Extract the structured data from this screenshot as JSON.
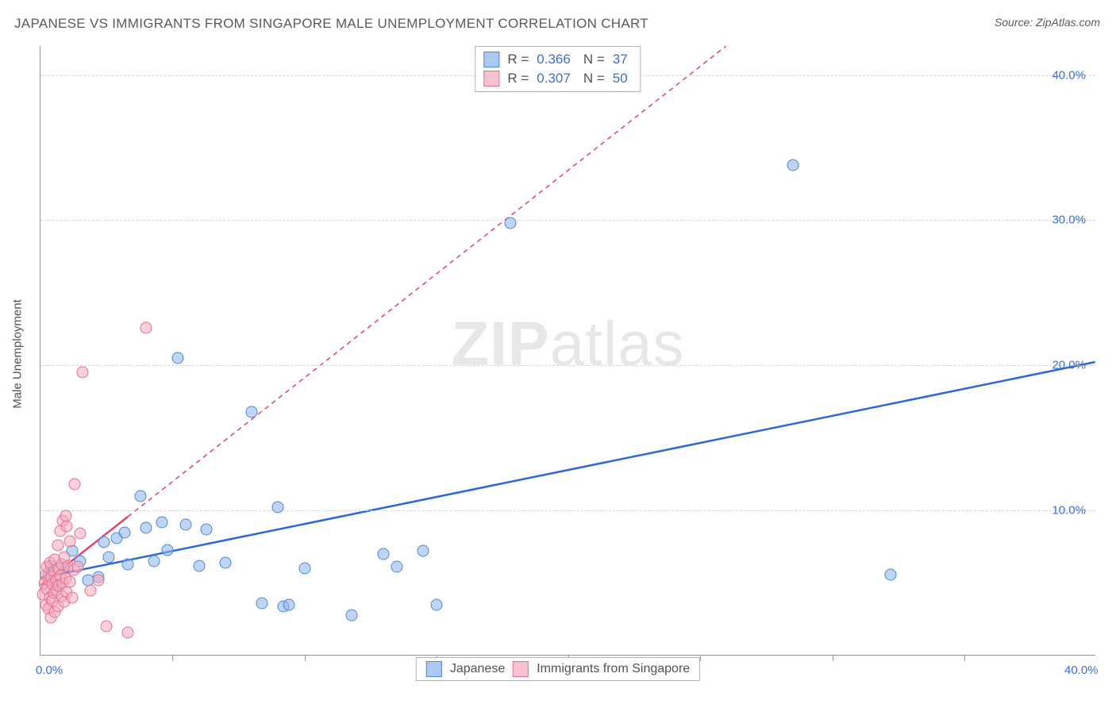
{
  "title": "JAPANESE VS IMMIGRANTS FROM SINGAPORE MALE UNEMPLOYMENT CORRELATION CHART",
  "source": "Source: ZipAtlas.com",
  "y_axis_label": "Male Unemployment",
  "watermark_bold": "ZIP",
  "watermark_rest": "atlas",
  "chart": {
    "type": "scatter",
    "xlim": [
      0,
      40
    ],
    "ylim": [
      0,
      42
    ],
    "x_ticks": [
      {
        "v": 0,
        "label": "0.0%"
      },
      {
        "v": 40,
        "label": "40.0%"
      }
    ],
    "y_ticks": [
      {
        "v": 10,
        "label": "10.0%"
      },
      {
        "v": 20,
        "label": "20.0%"
      },
      {
        "v": 30,
        "label": "30.0%"
      },
      {
        "v": 40,
        "label": "40.0%"
      }
    ],
    "v_tick_marks": [
      5,
      10,
      15,
      20,
      25,
      30,
      35
    ],
    "grid_color": "#d5d5d5",
    "background_color": "#ffffff",
    "series": [
      {
        "name": "Japanese",
        "color_fill": "rgba(136,178,235,0.55)",
        "color_stroke": "#4f87d0",
        "marker": "circle",
        "marker_size": 15,
        "R": "0.366",
        "N": "37",
        "trend": {
          "x1": 0,
          "y1": 5.3,
          "x2": 40,
          "y2": 20.2,
          "x_solid_end": 40,
          "stroke": "#2b68d8",
          "width": 2.5,
          "dash": null
        },
        "points": [
          [
            0.3,
            5.5
          ],
          [
            0.4,
            6.2
          ],
          [
            0.6,
            4.8
          ],
          [
            0.9,
            6.0
          ],
          [
            1.2,
            7.2
          ],
          [
            1.5,
            6.5
          ],
          [
            1.8,
            5.2
          ],
          [
            2.2,
            5.4
          ],
          [
            2.4,
            7.8
          ],
          [
            2.6,
            6.8
          ],
          [
            2.9,
            8.1
          ],
          [
            3.2,
            8.5
          ],
          [
            3.3,
            6.3
          ],
          [
            3.8,
            11.0
          ],
          [
            4.0,
            8.8
          ],
          [
            4.3,
            6.5
          ],
          [
            4.6,
            9.2
          ],
          [
            4.8,
            7.3
          ],
          [
            5.2,
            20.5
          ],
          [
            5.5,
            9.0
          ],
          [
            6.0,
            6.2
          ],
          [
            6.3,
            8.7
          ],
          [
            7.0,
            6.4
          ],
          [
            8.0,
            16.8
          ],
          [
            8.4,
            3.6
          ],
          [
            9.0,
            10.2
          ],
          [
            9.2,
            3.4
          ],
          [
            9.4,
            3.5
          ],
          [
            10.0,
            6.0
          ],
          [
            11.8,
            2.8
          ],
          [
            13.0,
            7.0
          ],
          [
            13.5,
            6.1
          ],
          [
            14.5,
            7.2
          ],
          [
            15.0,
            3.5
          ],
          [
            17.8,
            29.8
          ],
          [
            28.5,
            33.8
          ],
          [
            32.2,
            5.6
          ]
        ]
      },
      {
        "name": "Immigrants from Singapore",
        "color_fill": "rgba(245,170,190,0.55)",
        "color_stroke": "#e56f8f",
        "marker": "circle",
        "marker_size": 15,
        "R": "0.307",
        "N": "50",
        "trend": {
          "x1": 0,
          "y1": 4.8,
          "x2": 26,
          "y2": 42,
          "x_solid_end": 3.3,
          "stroke": "#e24070",
          "width": 2.5,
          "dash": "6,5"
        },
        "points": [
          [
            0.1,
            4.2
          ],
          [
            0.15,
            5.0
          ],
          [
            0.2,
            3.5
          ],
          [
            0.2,
            5.6
          ],
          [
            0.25,
            4.6
          ],
          [
            0.25,
            6.1
          ],
          [
            0.3,
            3.2
          ],
          [
            0.3,
            5.2
          ],
          [
            0.35,
            4.0
          ],
          [
            0.35,
            6.4
          ],
          [
            0.4,
            2.6
          ],
          [
            0.4,
            5.4
          ],
          [
            0.45,
            3.8
          ],
          [
            0.45,
            4.9
          ],
          [
            0.5,
            4.3
          ],
          [
            0.5,
            5.8
          ],
          [
            0.55,
            3.0
          ],
          [
            0.55,
            6.6
          ],
          [
            0.6,
            4.5
          ],
          [
            0.6,
            5.2
          ],
          [
            0.65,
            3.4
          ],
          [
            0.65,
            7.6
          ],
          [
            0.7,
            4.8
          ],
          [
            0.7,
            6.0
          ],
          [
            0.75,
            5.5
          ],
          [
            0.75,
            8.6
          ],
          [
            0.8,
            4.1
          ],
          [
            0.8,
            6.3
          ],
          [
            0.85,
            5.0
          ],
          [
            0.85,
            9.3
          ],
          [
            0.9,
            3.7
          ],
          [
            0.9,
            6.8
          ],
          [
            0.95,
            5.3
          ],
          [
            0.95,
            9.6
          ],
          [
            1.0,
            4.4
          ],
          [
            1.0,
            8.9
          ],
          [
            1.05,
            6.2
          ],
          [
            1.1,
            5.1
          ],
          [
            1.1,
            7.9
          ],
          [
            1.2,
            4.0
          ],
          [
            1.25,
            5.9
          ],
          [
            1.3,
            11.8
          ],
          [
            1.4,
            6.1
          ],
          [
            1.5,
            8.4
          ],
          [
            1.6,
            19.5
          ],
          [
            1.9,
            4.5
          ],
          [
            2.2,
            5.2
          ],
          [
            2.5,
            2.0
          ],
          [
            3.3,
            1.6
          ],
          [
            4.0,
            22.6
          ]
        ]
      }
    ]
  },
  "stats_legend": {
    "r_label": "R =",
    "n_label": "N ="
  },
  "bottom_legend": {
    "items": [
      "Japanese",
      "Immigrants from Singapore"
    ]
  }
}
